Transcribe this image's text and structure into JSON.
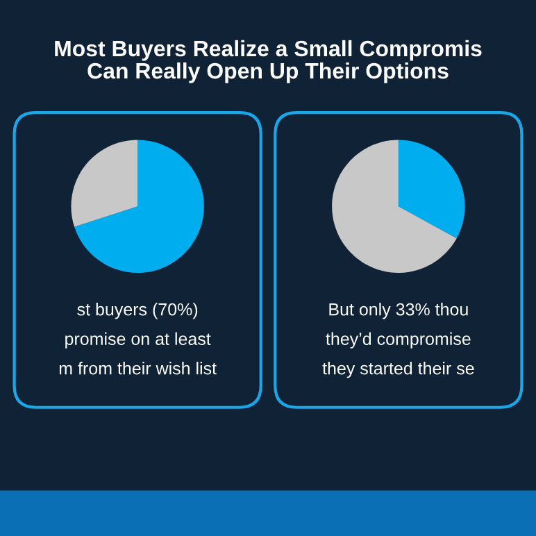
{
  "chart_data": [
    {
      "type": "pie",
      "title": "Most Buyers Realize a Small Compromis\nCan Really Open Up Their Options",
      "categories": [
        null,
        null
      ],
      "values": [
        70,
        30
      ],
      "colors": [
        "#00aeef",
        "#c8c8c8"
      ],
      "annotations": [
        "st buyers (70%)",
        "promise on at least",
        "m from their wish list"
      ]
    },
    {
      "type": "pie",
      "categories": [
        null,
        null
      ],
      "values": [
        33,
        67
      ],
      "colors": [
        "#00aeef",
        "#c8c8c8"
      ],
      "annotations": [
        "But only 33% thou",
        "they’d compromise",
        "they started their se"
      ]
    }
  ]
}
